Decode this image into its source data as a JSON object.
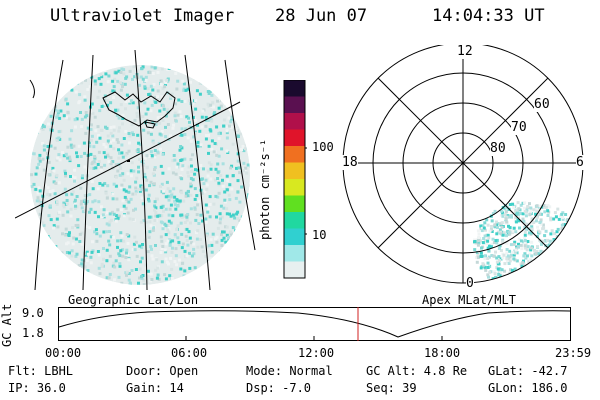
{
  "header": {
    "instrument": "Ultraviolet Imager",
    "date": "28 Jun 07",
    "time": "14:04:33 UT"
  },
  "colorbar": {
    "unit_label": "photon cm⁻²s⁻¹",
    "ticks": [
      "100",
      "10"
    ],
    "colors": [
      "#1a0a2e",
      "#5a1050",
      "#b0104a",
      "#e0142a",
      "#f07020",
      "#f0c020",
      "#d8e820",
      "#60e020",
      "#20d8a0",
      "#30d0d0",
      "#a0e8e8",
      "#e8f0f0"
    ]
  },
  "geo_panel": {
    "label": "Geographic Lat/Lon",
    "aurora_color": "#30d8c8"
  },
  "polar_panel": {
    "label": "Apex MLat/MLT",
    "mlt_labels": {
      "top": "12",
      "left": "18",
      "right": "6",
      "bottom": "0"
    },
    "lat_labels": [
      "60",
      "70",
      "80"
    ]
  },
  "orbit_plot": {
    "axis_label": "GC Alt",
    "y_ticks": [
      "9.0",
      "1.8"
    ],
    "x_ticks": [
      "00:00",
      "06:00",
      "12:00",
      "18:00",
      "23:59"
    ],
    "marker_color": "#d02020"
  },
  "info": {
    "filter": "Flt: LBHL",
    "ip": "IP: 36.0",
    "door": "Door: Open",
    "gain": "Gain: 14",
    "mode": "Mode: Normal",
    "dsp": "Dsp:   -7.0",
    "gc_alt": "GC Alt: 4.8 Re",
    "seq": "Seq: 39",
    "glat": "GLat: -42.7",
    "glon": "GLon: 186.0"
  }
}
